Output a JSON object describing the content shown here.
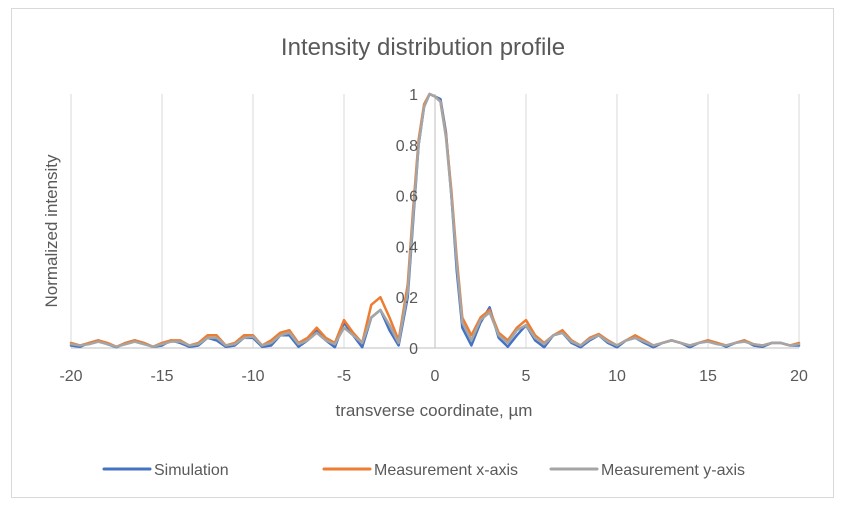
{
  "chart_data": {
    "type": "line",
    "title": "Intensity distribution profile",
    "xlabel": "transverse coordinate, µm",
    "ylabel": "Normalized intensity",
    "xlim": [
      -20,
      20
    ],
    "ylim": [
      0,
      1
    ],
    "xticks": [
      -20,
      -15,
      -10,
      -5,
      0,
      5,
      10,
      15,
      20
    ],
    "xtick_labels": [
      "-20",
      "-15",
      "-10",
      "-5",
      "0",
      "5",
      "10",
      "15",
      "20"
    ],
    "yticks": [
      0,
      0.2,
      0.4,
      0.6,
      0.8,
      1
    ],
    "ytick_labels": [
      "0",
      "0.2",
      "0.4",
      "0.6",
      "0.8",
      "1"
    ],
    "grid": "vertical",
    "legend_position": "bottom",
    "series": [
      {
        "name": "Simulation",
        "color": "#4472C4",
        "x": [
          -20,
          -19.5,
          -19,
          -18.5,
          -18,
          -17.5,
          -17,
          -16.5,
          -16,
          -15.5,
          -15,
          -14.5,
          -14,
          -13.5,
          -13,
          -12.5,
          -12,
          -11.5,
          -11,
          -10.5,
          -10,
          -9.5,
          -9,
          -8.5,
          -8,
          -7.5,
          -7,
          -6.5,
          -6,
          -5.5,
          -5,
          -4.5,
          -4,
          -3.5,
          -3,
          -2.5,
          -2,
          -1.5,
          -1.2,
          -0.9,
          -0.6,
          -0.3,
          0,
          0.3,
          0.6,
          0.9,
          1.2,
          1.5,
          2,
          2.5,
          3,
          3.5,
          4,
          4.5,
          5,
          5.5,
          6,
          6.5,
          7,
          7.5,
          8,
          8.5,
          9,
          9.5,
          10,
          10.5,
          11,
          11.5,
          12,
          12.5,
          13,
          13.5,
          14,
          14.5,
          15,
          15.5,
          16,
          16.5,
          17,
          17.5,
          18,
          18.5,
          19,
          19.5,
          20
        ],
        "values": [
          0.01,
          0.005,
          0.02,
          0.03,
          0.015,
          0.003,
          0.02,
          0.03,
          0.02,
          0.005,
          0.01,
          0.03,
          0.02,
          0.005,
          0.01,
          0.04,
          0.03,
          0.005,
          0.01,
          0.04,
          0.04,
          0.005,
          0.01,
          0.05,
          0.05,
          0.005,
          0.03,
          0.07,
          0.03,
          0.003,
          0.1,
          0.05,
          0.003,
          0.12,
          0.15,
          0.07,
          0.01,
          0.2,
          0.5,
          0.8,
          0.95,
          1,
          0.99,
          0.98,
          0.85,
          0.6,
          0.3,
          0.08,
          0.01,
          0.1,
          0.16,
          0.04,
          0.005,
          0.05,
          0.09,
          0.03,
          0.003,
          0.05,
          0.06,
          0.02,
          0.003,
          0.03,
          0.05,
          0.02,
          0.003,
          0.03,
          0.04,
          0.02,
          0.003,
          0.02,
          0.03,
          0.02,
          0.003,
          0.02,
          0.03,
          0.02,
          0.005,
          0.02,
          0.03,
          0.01,
          0.005,
          0.02,
          0.02,
          0.01,
          0.01
        ]
      },
      {
        "name": "Measurement x-axis",
        "color": "#ED7D31",
        "x": [
          -20,
          -19.5,
          -19,
          -18.5,
          -18,
          -17.5,
          -17,
          -16.5,
          -16,
          -15.5,
          -15,
          -14.5,
          -14,
          -13.5,
          -13,
          -12.5,
          -12,
          -11.5,
          -11,
          -10.5,
          -10,
          -9.5,
          -9,
          -8.5,
          -8,
          -7.5,
          -7,
          -6.5,
          -6,
          -5.5,
          -5,
          -4.5,
          -4,
          -3.5,
          -3,
          -2.5,
          -2,
          -1.5,
          -1.2,
          -0.9,
          -0.6,
          -0.3,
          0,
          0.3,
          0.6,
          0.9,
          1.2,
          1.5,
          2,
          2.5,
          3,
          3.5,
          4,
          4.5,
          5,
          5.5,
          6,
          6.5,
          7,
          7.5,
          8,
          8.5,
          9,
          9.5,
          10,
          10.5,
          11,
          11.5,
          12,
          12.5,
          13,
          13.5,
          14,
          14.5,
          15,
          15.5,
          16,
          16.5,
          17,
          17.5,
          18,
          18.5,
          19,
          19.5,
          20
        ],
        "values": [
          0.02,
          0.01,
          0.02,
          0.03,
          0.02,
          0.005,
          0.02,
          0.03,
          0.02,
          0.005,
          0.02,
          0.03,
          0.03,
          0.01,
          0.02,
          0.05,
          0.05,
          0.01,
          0.02,
          0.05,
          0.05,
          0.01,
          0.03,
          0.06,
          0.07,
          0.02,
          0.04,
          0.08,
          0.04,
          0.02,
          0.11,
          0.06,
          0.02,
          0.17,
          0.2,
          0.12,
          0.03,
          0.25,
          0.55,
          0.82,
          0.96,
          1,
          0.99,
          0.97,
          0.84,
          0.62,
          0.35,
          0.12,
          0.05,
          0.12,
          0.15,
          0.06,
          0.03,
          0.08,
          0.11,
          0.05,
          0.02,
          0.05,
          0.07,
          0.03,
          0.01,
          0.04,
          0.055,
          0.03,
          0.01,
          0.03,
          0.05,
          0.03,
          0.01,
          0.02,
          0.03,
          0.02,
          0.01,
          0.02,
          0.03,
          0.02,
          0.01,
          0.02,
          0.03,
          0.015,
          0.01,
          0.02,
          0.02,
          0.01,
          0.02
        ]
      },
      {
        "name": "Measurement y-axis",
        "color": "#A5A5A5",
        "x": [
          -20,
          -19.5,
          -19,
          -18.5,
          -18,
          -17.5,
          -17,
          -16.5,
          -16,
          -15.5,
          -15,
          -14.5,
          -14,
          -13.5,
          -13,
          -12.5,
          -12,
          -11.5,
          -11,
          -10.5,
          -10,
          -9.5,
          -9,
          -8.5,
          -8,
          -7.5,
          -7,
          -6.5,
          -6,
          -5.5,
          -5,
          -4.5,
          -4,
          -3.5,
          -3,
          -2.5,
          -2,
          -1.5,
          -1.2,
          -0.9,
          -0.6,
          -0.3,
          0,
          0.3,
          0.6,
          0.9,
          1.2,
          1.5,
          2,
          2.5,
          3,
          3.5,
          4,
          4.5,
          5,
          5.5,
          6,
          6.5,
          7,
          7.5,
          8,
          8.5,
          9,
          9.5,
          10,
          10.5,
          11,
          11.5,
          12,
          12.5,
          13,
          13.5,
          14,
          14.5,
          15,
          15.5,
          16,
          16.5,
          17,
          17.5,
          18,
          18.5,
          19,
          19.5,
          20
        ],
        "values": [
          0.015,
          0.01,
          0.015,
          0.025,
          0.015,
          0.005,
          0.015,
          0.025,
          0.015,
          0.005,
          0.015,
          0.025,
          0.025,
          0.01,
          0.015,
          0.04,
          0.04,
          0.01,
          0.015,
          0.04,
          0.045,
          0.01,
          0.02,
          0.05,
          0.06,
          0.015,
          0.03,
          0.06,
          0.03,
          0.015,
          0.08,
          0.05,
          0.02,
          0.12,
          0.15,
          0.09,
          0.02,
          0.22,
          0.52,
          0.8,
          0.95,
          1,
          0.99,
          0.97,
          0.83,
          0.6,
          0.33,
          0.1,
          0.03,
          0.11,
          0.14,
          0.05,
          0.02,
          0.07,
          0.09,
          0.04,
          0.015,
          0.05,
          0.06,
          0.025,
          0.01,
          0.035,
          0.05,
          0.025,
          0.01,
          0.03,
          0.04,
          0.025,
          0.01,
          0.02,
          0.03,
          0.02,
          0.01,
          0.02,
          0.025,
          0.015,
          0.01,
          0.02,
          0.025,
          0.015,
          0.01,
          0.02,
          0.02,
          0.01,
          0.015
        ]
      }
    ]
  }
}
